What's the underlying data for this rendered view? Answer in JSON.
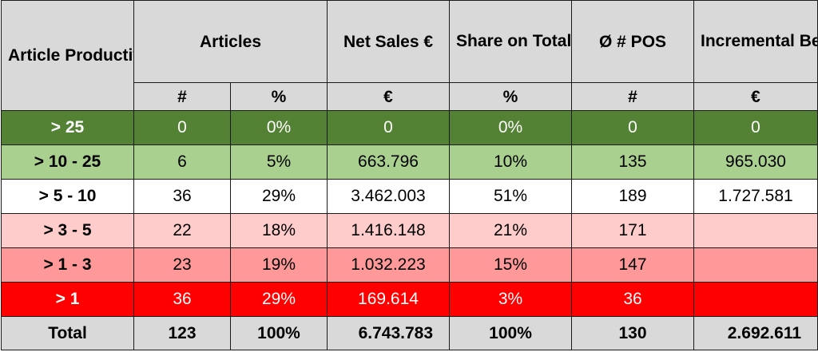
{
  "headers": {
    "article_productivity": "Article Productivity",
    "articles": "Articles",
    "net_sales": "Net Sales €",
    "share": "Share on Total Net Sales",
    "pos": "Ø # POS",
    "incremental": "Incremental Best Seller Potential"
  },
  "units": {
    "articles_count": "#",
    "articles_pct": "%",
    "net_sales": "€",
    "share": "%",
    "pos": "#",
    "incremental": "€"
  },
  "rows": [
    {
      "label": "> 25",
      "count": "0",
      "pct": "0%",
      "net_sales": "0",
      "share": "0%",
      "pos": "0",
      "incremental": "0",
      "bg": "#548235",
      "text_color": "#ffffff"
    },
    {
      "label": "> 10 - 25",
      "count": "6",
      "pct": "5%",
      "net_sales": "663.796",
      "share": "10%",
      "pos": "135",
      "incremental": "965.030",
      "bg": "#a9d08e",
      "text_color": "#000000"
    },
    {
      "label": "> 5 - 10",
      "count": "36",
      "pct": "29%",
      "net_sales": "3.462.003",
      "share": "51%",
      "pos": "189",
      "incremental": "1.727.581",
      "bg": "#ffffff",
      "text_color": "#000000"
    },
    {
      "label": "> 3 - 5",
      "count": "22",
      "pct": "18%",
      "net_sales": "1.416.148",
      "share": "21%",
      "pos": "171",
      "incremental": "",
      "bg": "#ffcccc",
      "text_color": "#000000"
    },
    {
      "label": "> 1 - 3",
      "count": "23",
      "pct": "19%",
      "net_sales": "1.032.223",
      "share": "15%",
      "pos": "147",
      "incremental": "",
      "bg": "#ff9999",
      "text_color": "#000000"
    },
    {
      "label": "> 1",
      "count": "36",
      "pct": "29%",
      "net_sales": "169.614",
      "share": "3%",
      "pos": "36",
      "incremental": "",
      "bg": "#ff0000",
      "text_color": "#ffffff"
    }
  ],
  "total": {
    "label": "Total",
    "count": "123",
    "pct": "100%",
    "net_sales": "6.743.783",
    "share": "100%",
    "pos": "130",
    "incremental": "2.692.611"
  }
}
